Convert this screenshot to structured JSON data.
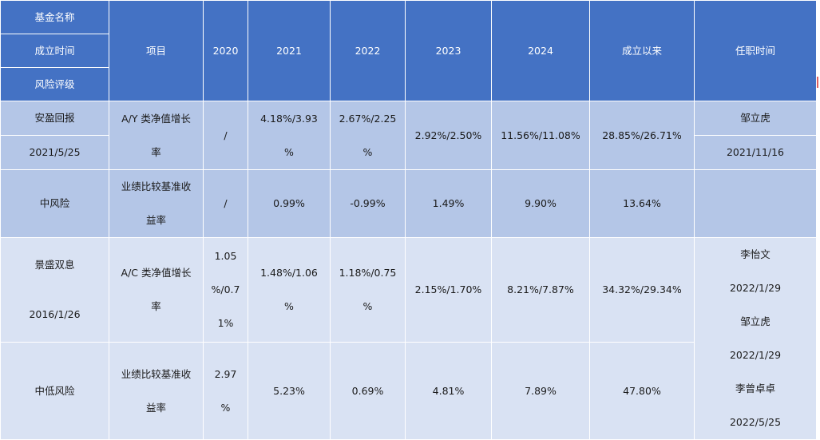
{
  "header": {
    "fund_name": "基金名称",
    "established": "成立时间",
    "risk_level": "风险评级",
    "item": "项目",
    "y2020": "2020",
    "y2021": "2021",
    "y2022": "2022",
    "y2023": "2023",
    "y2024": "2024",
    "since_inception": "成立以来",
    "tenure": "任职时间"
  },
  "fund1": {
    "name": "安盈回报",
    "date": "2021/5/25",
    "risk": "中风险",
    "row1": {
      "item_a": "A/Y 类净值增长",
      "item_b": "率",
      "y2020": "/",
      "y2021_a": "4.18%/3.93",
      "y2021_b": "%",
      "y2022_a": "2.67%/2.25",
      "y2022_b": "%",
      "y2023": "2.92%/2.50%",
      "y2024": "11.56%/11.08%",
      "since": "28.85%/26.71%"
    },
    "manager": "邹立虎",
    "manager_date": "2021/11/16",
    "row2": {
      "item_a": "业绩比较基准收",
      "item_b": "益率",
      "y2020": "/",
      "y2021": "0.99%",
      "y2022": "-0.99%",
      "y2023": "1.49%",
      "y2024": "9.90%",
      "since": "13.64%"
    }
  },
  "fund2": {
    "name": "景盛双息",
    "date": "2016/1/26",
    "risk": "中低风险",
    "row1": {
      "item_a": "A/C 类净值增长",
      "item_b": "率",
      "y2020_a": "1.05",
      "y2020_b": "%/0.7",
      "y2020_c": "1%",
      "y2021_a": "1.48%/1.06",
      "y2021_b": "%",
      "y2022_a": "1.18%/0.75",
      "y2022_b": "%",
      "y2023": "2.15%/1.70%",
      "y2024": "8.21%/7.87%",
      "since": "34.32%/29.34%"
    },
    "row2": {
      "item_a": "业绩比较基准收",
      "item_b": "益率",
      "y2020_a": "2.97",
      "y2020_b": "%",
      "y2021": "5.23%",
      "y2022": "0.69%",
      "y2023": "4.81%",
      "y2024": "7.89%",
      "since": "47.80%"
    },
    "managers": [
      {
        "name": "李怡文",
        "date": "2022/1/29"
      },
      {
        "name": "邹立虎",
        "date": "2022/1/29"
      },
      {
        "name": "李曾卓卓",
        "date": "2022/5/25"
      }
    ]
  }
}
